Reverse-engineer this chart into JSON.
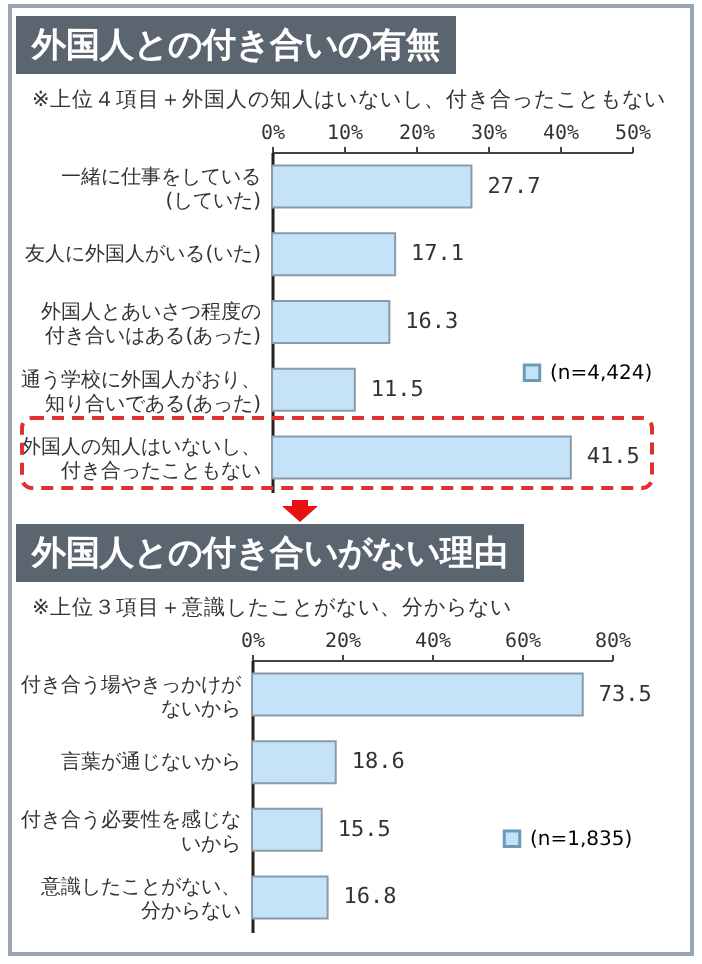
{
  "chart_data": [
    {
      "type": "bar",
      "orientation": "horizontal",
      "title": "外国人との付き合いの有無",
      "subtitle": "※上位４項目＋外国人の知人はいないし、付き合ったこともない",
      "categories": [
        "一緒に仕事をしている(していた)",
        "友人に外国人がいる(いた)",
        "外国人とあいさつ程度の付き合いはある(あった)",
        "通う学校に外国人がおり、知り合いである(あった)",
        "外国人の知人はいないし、付き合ったこともない"
      ],
      "series": [
        {
          "name": "(n=4,424)",
          "color": "#c5e3f8",
          "values": [
            27.7,
            17.1,
            16.3,
            11.5,
            41.5
          ]
        }
      ],
      "xlim": [
        0,
        50
      ],
      "xticks": [
        {
          "value": 0,
          "label": "0%"
        },
        {
          "value": 10,
          "label": "10%"
        },
        {
          "value": 20,
          "label": "20%"
        },
        {
          "value": 30,
          "label": "30%"
        },
        {
          "value": 40,
          "label": "40%"
        },
        {
          "value": 50,
          "label": "50%"
        }
      ],
      "data_labels": true,
      "legend": "right",
      "grid": false
    },
    {
      "type": "bar",
      "orientation": "horizontal",
      "title": "外国人との付き合いがない理由",
      "subtitle": "※上位３項目＋意識したことがない、分からない",
      "categories": [
        "付き合う場やきっかけがないから",
        "言葉が通じないから",
        "付き合う必要性を感じないから",
        "意識したことがない、分からない"
      ],
      "series": [
        {
          "name": "(n=1,835)",
          "color": "#c5e3f8",
          "values": [
            73.5,
            18.6,
            15.5,
            16.8
          ]
        }
      ],
      "xlim": [
        0,
        80
      ],
      "xticks": [
        {
          "value": 0,
          "label": "0%"
        },
        {
          "value": 20,
          "label": "20%"
        },
        {
          "value": 40,
          "label": "40%"
        },
        {
          "value": 60,
          "label": "60%"
        },
        {
          "value": 80,
          "label": "80%"
        }
      ],
      "data_labels": true,
      "legend": "right",
      "grid": false
    }
  ]
}
